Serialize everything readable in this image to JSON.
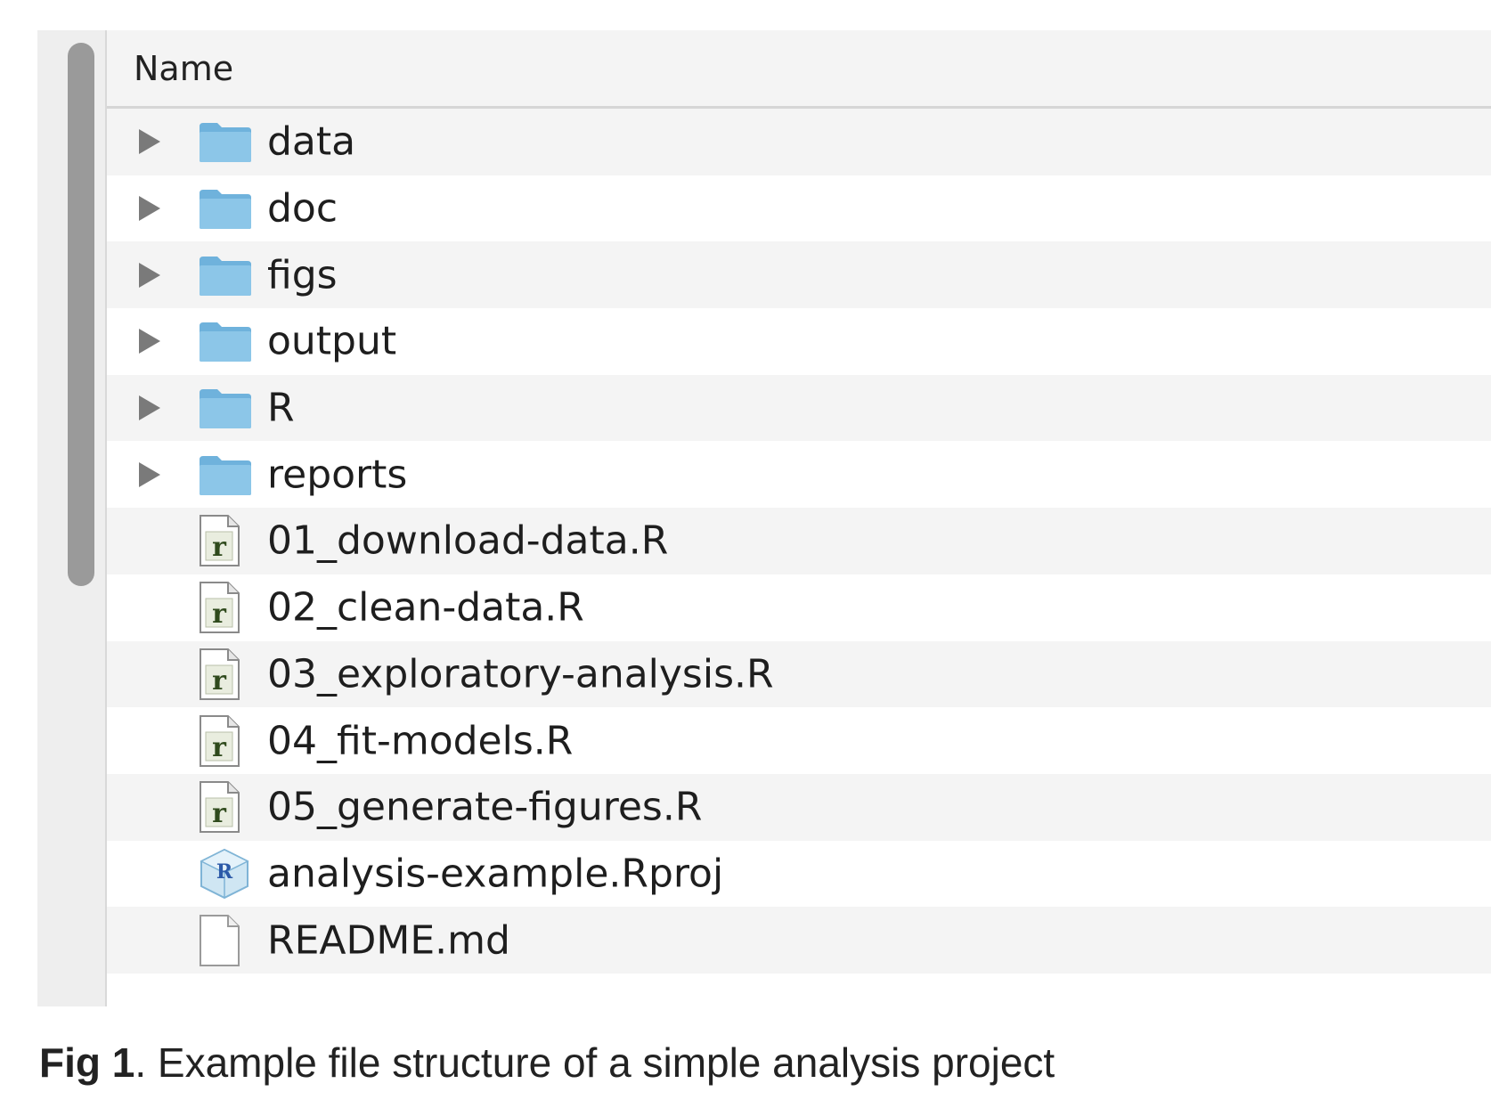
{
  "finder": {
    "column_header": "Name",
    "items": [
      {
        "name": "data",
        "type": "folder",
        "icon": "folder-icon"
      },
      {
        "name": "doc",
        "type": "folder",
        "icon": "folder-icon"
      },
      {
        "name": "figs",
        "type": "folder",
        "icon": "folder-icon"
      },
      {
        "name": "output",
        "type": "folder",
        "icon": "folder-icon"
      },
      {
        "name": "R",
        "type": "folder",
        "icon": "folder-icon"
      },
      {
        "name": "reports",
        "type": "folder",
        "icon": "folder-icon"
      },
      {
        "name": "01_download-data.R",
        "type": "r-file",
        "icon": "r-file-icon"
      },
      {
        "name": "02_clean-data.R",
        "type": "r-file",
        "icon": "r-file-icon"
      },
      {
        "name": "03_exploratory-analysis.R",
        "type": "r-file",
        "icon": "r-file-icon"
      },
      {
        "name": "04_fit-models.R",
        "type": "r-file",
        "icon": "r-file-icon"
      },
      {
        "name": "05_generate-figures.R",
        "type": "r-file",
        "icon": "r-file-icon"
      },
      {
        "name": "analysis-example.Rproj",
        "type": "rproj",
        "icon": "rproj-icon"
      },
      {
        "name": "README.md",
        "type": "document",
        "icon": "document-icon"
      }
    ]
  },
  "caption": {
    "label": "Fig 1",
    "text": ". Example file structure of a simple analysis project"
  },
  "colors": {
    "folder": "#8cc6e8",
    "folder_dark": "#6fb2dc",
    "stripe": "#f4f4f4",
    "r_letter": "#2f4a1c"
  }
}
